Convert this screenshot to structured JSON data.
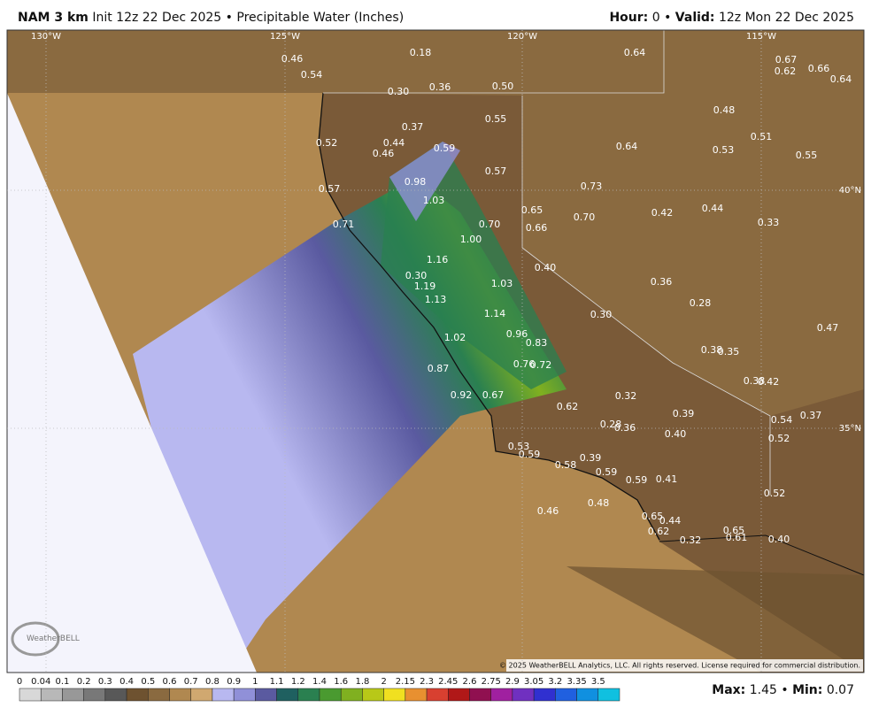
{
  "header": {
    "model": "NAM 3 km",
    "init": "Init 12z 22 Dec 2025",
    "separator": "•",
    "product": "Precipitable Water (Inches)",
    "hour_label": "Hour:",
    "hour": "0",
    "valid_label": "Valid:",
    "valid": "12z Mon 22 Dec 2025"
  },
  "map": {
    "lon_labels": [
      "130°W",
      "125°W",
      "120°W",
      "115°W"
    ],
    "lat_labels": [
      "40°N",
      "35°N"
    ],
    "values": [
      "0.46",
      "0.54",
      "0.18",
      "0.30",
      "0.36",
      "0.50",
      "0.64",
      "0.67",
      "0.66",
      "0.62",
      "0.64",
      "0.55",
      "0.37",
      "0.48",
      "0.51",
      "0.52",
      "0.44",
      "0.46",
      "0.59",
      "0.64",
      "0.53",
      "0.55",
      "0.57",
      "0.98",
      "0.73",
      "0.57",
      "1.03",
      "0.65",
      "0.42",
      "0.44",
      "0.70",
      "0.70",
      "0.33",
      "0.71",
      "0.66",
      "1.00",
      "1.16",
      "0.40",
      "0.30",
      "1.19",
      "1.03",
      "0.36",
      "1.13",
      "0.28",
      "1.14",
      "0.30",
      "0.47",
      "1.02",
      "0.96",
      "0.83",
      "0.38",
      "0.35",
      "0.76",
      "0.72",
      "0.87",
      "0.38",
      "0.42",
      "0.92",
      "0.67",
      "0.32",
      "0.62",
      "0.39",
      "0.37",
      "0.54",
      "0.28",
      "0.36",
      "0.40",
      "0.52",
      "0.53",
      "0.59",
      "0.39",
      "0.58",
      "0.59",
      "0.59",
      "0.41",
      "0.52",
      "0.48",
      "0.46",
      "0.65",
      "0.44",
      "0.62",
      "0.65",
      "0.61",
      "0.32",
      "0.40"
    ],
    "logo": "WeatherBELL",
    "copyright": "© 2025 WeatherBELL Analytics, LLC. All rights reserved. License required for commercial distribution."
  },
  "colorbar": {
    "labels": [
      "0",
      "0.04",
      "0.1",
      "0.2",
      "0.3",
      "0.4",
      "0.5",
      "0.6",
      "0.7",
      "0.8",
      "0.9",
      "1",
      "1.1",
      "1.2",
      "1.4",
      "1.6",
      "1.8",
      "2",
      "2.15",
      "2.3",
      "2.45",
      "2.6",
      "2.75",
      "2.9",
      "3.05",
      "3.2",
      "3.35",
      "3.5"
    ],
    "colors": [
      "#d8d8d8",
      "#b8b8b8",
      "#989898",
      "#787878",
      "#585858",
      "#6e5230",
      "#8a6a40",
      "#b08850",
      "#d0a870",
      "#b8b8f0",
      "#9090d8",
      "#5a5aa0",
      "#1f6060",
      "#2a8050",
      "#4a9a30",
      "#80b020",
      "#b8c818",
      "#f0e020",
      "#e89030",
      "#d84030",
      "#b01818",
      "#901050",
      "#a020a0",
      "#7030c0",
      "#3030d0",
      "#2060e0",
      "#1090e0",
      "#10c0e0"
    ],
    "max_label": "Max:",
    "max": "1.45",
    "min_label": "Min:",
    "min": "0.07"
  }
}
